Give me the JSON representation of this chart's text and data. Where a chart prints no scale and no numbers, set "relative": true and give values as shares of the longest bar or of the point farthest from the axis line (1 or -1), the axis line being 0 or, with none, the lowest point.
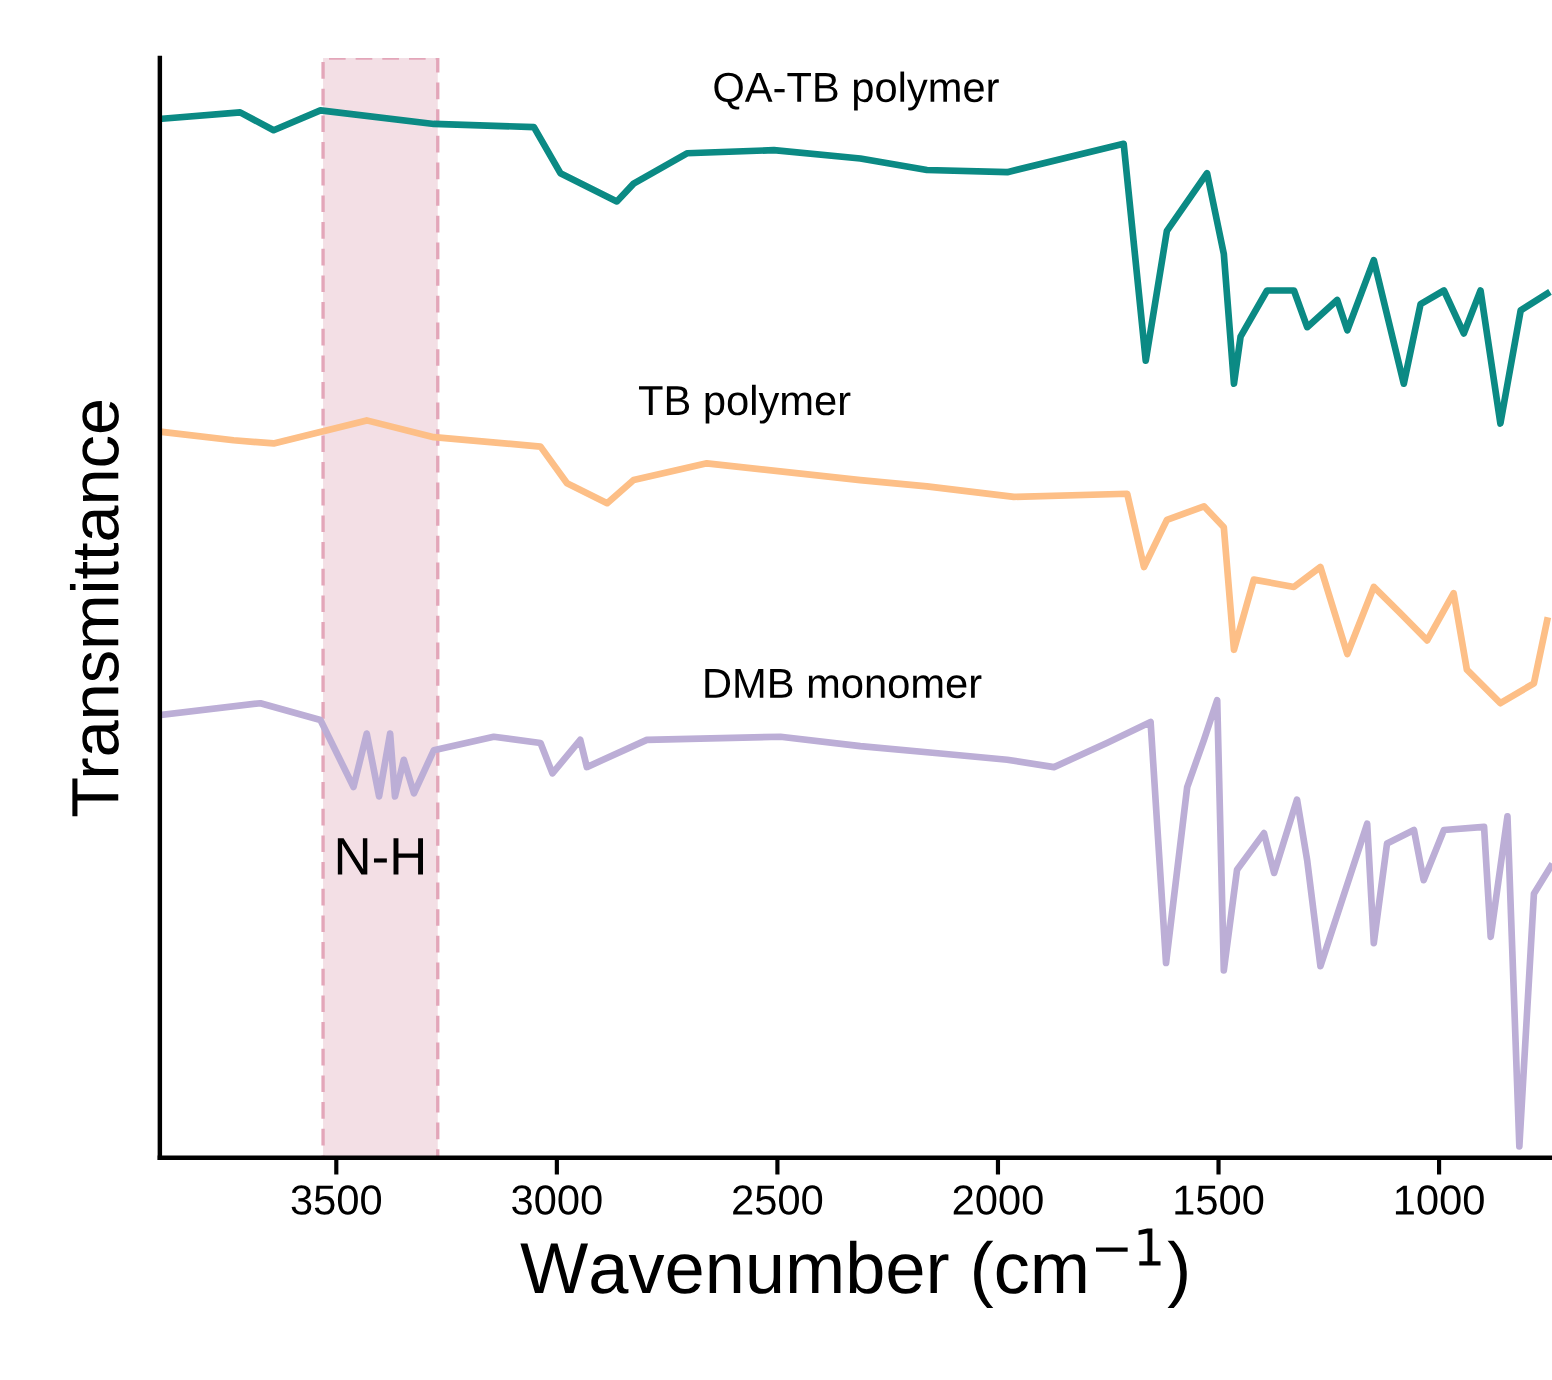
{
  "chart_data": {
    "type": "line",
    "relative": true,
    "xlabel": "Wavenumber (cm$^{−1}$)",
    "ylabel": "Transmittance",
    "xlim": [
      3900,
      744
    ],
    "xticks": [
      3500,
      3000,
      2500,
      2000,
      1500,
      1000
    ],
    "grid": false,
    "legend": false,
    "marker": "none",
    "line_style": "solid",
    "bands": [
      {
        "axis": "x",
        "from": 3530,
        "to": 3270,
        "label": "N-H",
        "color": "#f3dfe5"
      }
    ],
    "series": [
      {
        "name": "QA-TB polymer",
        "color": "#0b8a84",
        "x": [
          3895,
          3718,
          3642,
          3536,
          3279,
          3052,
          2992,
          2864,
          2826,
          2705,
          2508,
          2312,
          2161,
          1979,
          1715,
          1665,
          1617,
          1526,
          1488,
          1465,
          1450,
          1390,
          1329,
          1299,
          1231,
          1208,
          1148,
          1080,
          1042,
          989,
          944,
          906,
          861,
          815,
          755
        ],
        "values": [
          0.992,
          0.998,
          0.981,
          1.0,
          0.987,
          0.984,
          0.94,
          0.913,
          0.93,
          0.959,
          0.962,
          0.954,
          0.943,
          0.941,
          0.968,
          0.761,
          0.885,
          0.94,
          0.863,
          0.739,
          0.784,
          0.828,
          0.828,
          0.793,
          0.819,
          0.79,
          0.857,
          0.739,
          0.815,
          0.828,
          0.787,
          0.828,
          0.701,
          0.809,
          0.825
        ]
      },
      {
        "name": "TB polymer",
        "color": "#fdbf87",
        "x": [
          3895,
          3733,
          3642,
          3431,
          3279,
          3037,
          2977,
          2886,
          2826,
          2660,
          2312,
          2161,
          1964,
          1707,
          1669,
          1617,
          1533,
          1488,
          1465,
          1420,
          1329,
          1269,
          1208,
          1148,
          1088,
          1027,
          967,
          937,
          861,
          785,
          755
        ],
        "values": [
          0.693,
          0.685,
          0.682,
          0.704,
          0.688,
          0.679,
          0.644,
          0.625,
          0.647,
          0.663,
          0.647,
          0.641,
          0.631,
          0.634,
          0.564,
          0.609,
          0.622,
          0.602,
          0.485,
          0.552,
          0.545,
          0.564,
          0.481,
          0.545,
          0.52,
          0.494,
          0.539,
          0.466,
          0.434,
          0.453,
          0.513
        ]
      },
      {
        "name": "DMB monomer",
        "color": "#bcaed6",
        "x": [
          3895,
          3672,
          3536,
          3461,
          3431,
          3403,
          3378,
          3367,
          3347,
          3324,
          3279,
          3143,
          3037,
          3010,
          2947,
          2932,
          2796,
          2493,
          2312,
          2130,
          1979,
          1873,
          1753,
          1654,
          1619,
          1571,
          1533,
          1503,
          1488,
          1458,
          1397,
          1374,
          1322,
          1299,
          1269,
          1163,
          1148,
          1118,
          1057,
          1035,
          989,
          898,
          883,
          845,
          818,
          785,
          747
        ],
        "values": [
          0.423,
          0.434,
          0.418,
          0.354,
          0.405,
          0.345,
          0.405,
          0.345,
          0.38,
          0.348,
          0.389,
          0.402,
          0.396,
          0.367,
          0.399,
          0.373,
          0.399,
          0.402,
          0.393,
          0.386,
          0.38,
          0.373,
          0.396,
          0.416,
          0.186,
          0.354,
          0.399,
          0.437,
          0.179,
          0.275,
          0.31,
          0.272,
          0.342,
          0.284,
          0.183,
          0.319,
          0.205,
          0.3,
          0.313,
          0.265,
          0.313,
          0.316,
          0.211,
          0.326,
          0.011,
          0.252,
          0.278
        ]
      }
    ]
  }
}
